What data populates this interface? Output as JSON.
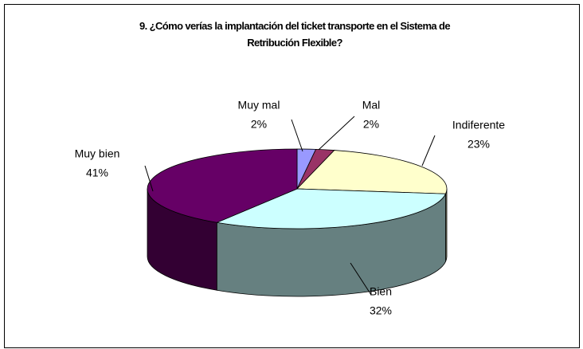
{
  "chart_data": {
    "type": "pie",
    "title": "9. ¿Cómo verías la implantación del ticket transporte en el Sistema de Retribución Flexible?",
    "categories": [
      "Muy mal",
      "Mal",
      "Indiferente",
      "Bien",
      "Muy bien"
    ],
    "values": [
      2,
      2,
      23,
      32,
      41
    ],
    "value_labels": [
      "2%",
      "2%",
      "23%",
      "32%",
      "41%"
    ],
    "colors": [
      "#9999ff",
      "#993366",
      "#ffffcc",
      "#ccffff",
      "#660066"
    ]
  }
}
